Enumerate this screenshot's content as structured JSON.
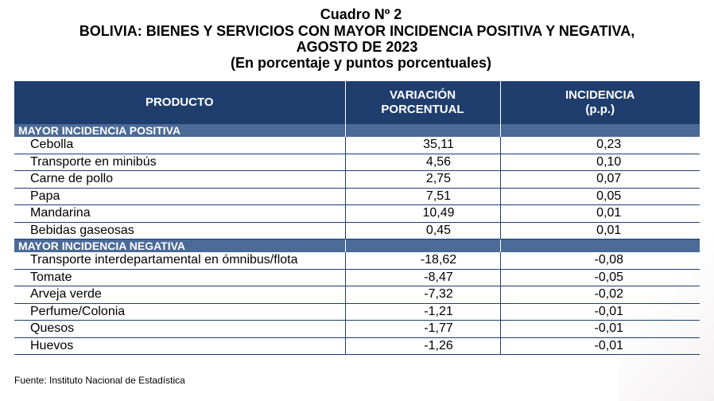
{
  "title": {
    "line1": "Cuadro Nº 2",
    "line2": "BOLIVIA: BIENES Y SERVICIOS CON MAYOR INCIDENCIA POSITIVA Y NEGATIVA,",
    "line3": "AGOSTO DE 2023",
    "line4": "(En porcentaje y puntos porcentuales)"
  },
  "table": {
    "headers": {
      "producto": "PRODUCTO",
      "variacion_1": "VARIACIÓN",
      "variacion_2": "PORCENTUAL",
      "incidencia_1": "INCIDENCIA",
      "incidencia_2": "(p.p.)"
    },
    "positive": {
      "label": "MAYOR INCIDENCIA POSITIVA",
      "rows": [
        {
          "producto": "Cebolla",
          "variacion": "35,11",
          "incidencia": "0,23"
        },
        {
          "producto": "Transporte en minibús",
          "variacion": "4,56",
          "incidencia": "0,10"
        },
        {
          "producto": "Carne de pollo",
          "variacion": "2,75",
          "incidencia": "0,07"
        },
        {
          "producto": "Papa",
          "variacion": "7,51",
          "incidencia": "0,05"
        },
        {
          "producto": "Mandarina",
          "variacion": "10,49",
          "incidencia": "0,01"
        },
        {
          "producto": "Bebidas gaseosas",
          "variacion": "0,45",
          "incidencia": "0,01"
        }
      ]
    },
    "negative": {
      "label": "MAYOR INCIDENCIA NEGATIVA",
      "rows": [
        {
          "producto": "Transporte interdepartamental en ómnibus/flota",
          "variacion": "-18,62",
          "incidencia": "-0,08"
        },
        {
          "producto": "Tomate",
          "variacion": "-8,47",
          "incidencia": "-0,05"
        },
        {
          "producto": "Arveja verde",
          "variacion": "-7,32",
          "incidencia": "-0,02"
        },
        {
          "producto": "Perfume/Colonia",
          "variacion": "-1,21",
          "incidencia": "-0,01"
        },
        {
          "producto": "Quesos",
          "variacion": "-1,77",
          "incidencia": "-0,01"
        },
        {
          "producto": "Huevos",
          "variacion": "-1,26",
          "incidencia": "-0,01"
        }
      ]
    }
  },
  "source": "Fuente: Instituto Nacional de Estadística",
  "colors": {
    "header_bg": "#1f3e6e",
    "section_bg": "#4b6a97"
  }
}
